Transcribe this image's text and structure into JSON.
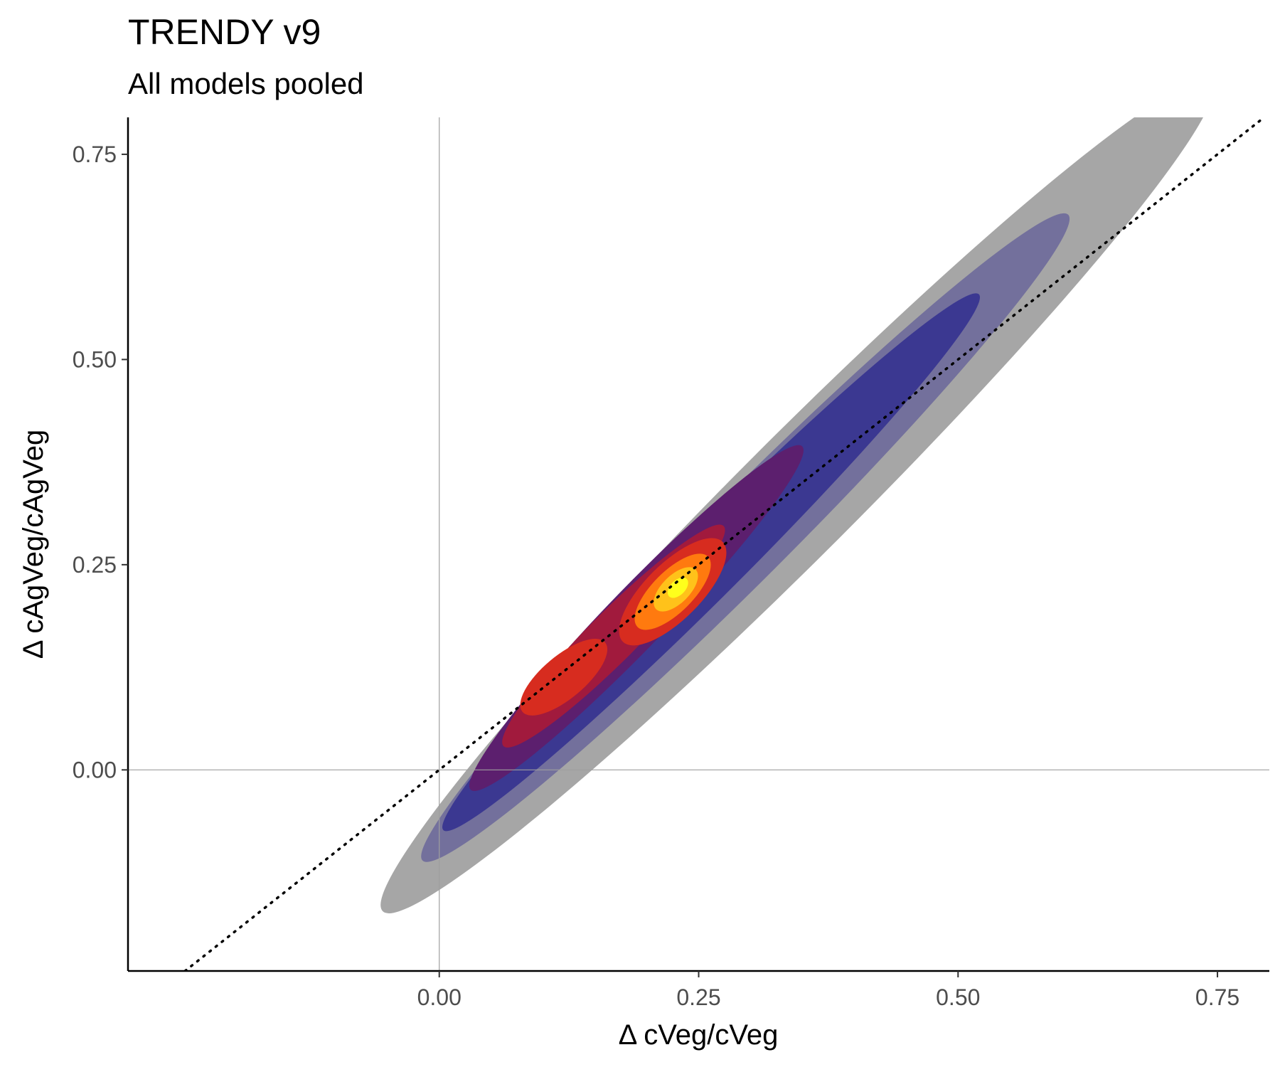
{
  "chart_data": {
    "type": "density-contour",
    "title": "TRENDY v9",
    "subtitle": "All models pooled",
    "xlabel": "Δ cVeg/cVeg",
    "ylabel": "Δ cAgVeg/cAgVeg",
    "xlim": [
      -0.3,
      0.8
    ],
    "ylim": [
      -0.245,
      0.795
    ],
    "x_ticks": [
      0.0,
      0.25,
      0.5,
      0.75
    ],
    "x_tick_labels": [
      "0.00",
      "0.25",
      "0.50",
      "0.75"
    ],
    "y_ticks": [
      0.0,
      0.25,
      0.5,
      0.75
    ],
    "y_tick_labels": [
      "0.00",
      "0.25",
      "0.50",
      "0.75"
    ],
    "reference_lines": {
      "vertical_x": 0.0,
      "horizontal_y": 0.0,
      "identity_line": true,
      "identity_style": "dotted"
    },
    "grid": false,
    "legend": "none",
    "contour_levels": [
      {
        "level": 1,
        "color": "#a6a6a6",
        "cx": 0.345,
        "cy": 0.333,
        "rx": 0.565,
        "ry": 0.072,
        "angle_deg": 45
      },
      {
        "level": 2,
        "color": "#73709c",
        "cx": 0.295,
        "cy": 0.283,
        "rx": 0.44,
        "ry": 0.052,
        "angle_deg": 45
      },
      {
        "level": 3,
        "color": "#3b3891",
        "cx": 0.262,
        "cy": 0.253,
        "rx": 0.365,
        "ry": 0.04,
        "angle_deg": 45
      },
      {
        "level": 4,
        "color": "#5c1f6e",
        "cx": 0.19,
        "cy": 0.185,
        "rx": 0.23,
        "ry": 0.036,
        "angle_deg": 46
      },
      {
        "level": 5,
        "color": "#a11a3d",
        "cx": 0.168,
        "cy": 0.163,
        "rx": 0.15,
        "ry": 0.03,
        "angle_deg": 45
      },
      {
        "level": 6,
        "color": "#d72c1f",
        "cx": 0.12,
        "cy": 0.113,
        "rx": 0.052,
        "ry": 0.026,
        "angle_deg": 40
      },
      {
        "level": 6,
        "color": "#d72c1f",
        "cx": 0.225,
        "cy": 0.217,
        "rx": 0.068,
        "ry": 0.034,
        "angle_deg": 45
      },
      {
        "level": 7,
        "color": "#ff7a0f",
        "cx": 0.225,
        "cy": 0.217,
        "rx": 0.048,
        "ry": 0.025,
        "angle_deg": 45
      },
      {
        "level": 8,
        "color": "#ffc21a",
        "cx": 0.228,
        "cy": 0.22,
        "rx": 0.027,
        "ry": 0.017,
        "angle_deg": 45
      },
      {
        "level": 9,
        "color": "#ffff1c",
        "cx": 0.23,
        "cy": 0.222,
        "rx": 0.012,
        "ry": 0.009,
        "angle_deg": 45
      }
    ]
  }
}
